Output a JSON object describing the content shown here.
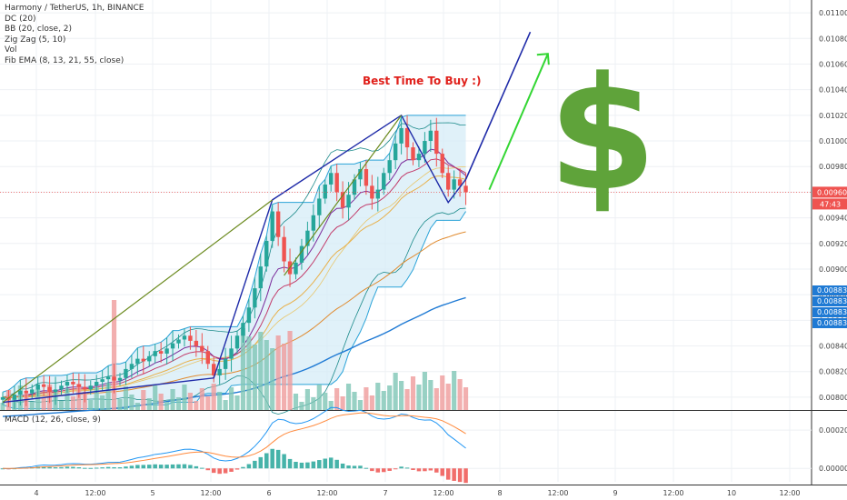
{
  "chart_data": {
    "type": "candlestick",
    "title": "Harmony / TetherUS, 1h, BINANCE",
    "indicators": [
      "DC (20)",
      "BB (20, close, 2)",
      "Zig Zag (5, 10)",
      "Vol",
      "Fib EMA (8, 13, 21, 55, close)"
    ],
    "annotation": "Best Time To Buy :)",
    "symbol": "$",
    "y_ticks": [
      "0.01100",
      "0.01080",
      "0.01060",
      "0.01040",
      "0.01020",
      "0.01000",
      "0.00980",
      "0.00960",
      "0.00940",
      "0.00920",
      "0.00900",
      "0.00880",
      "0.00860",
      "0.00840",
      "0.00820",
      "0.00800"
    ],
    "ylim": [
      0.0079,
      0.0111
    ],
    "x_ticks": [
      "4",
      "12:00",
      "5",
      "12:00",
      "6",
      "12:00",
      "7",
      "12:00",
      "8",
      "12:00",
      "9",
      "12:00",
      "10",
      "12:00"
    ],
    "last_price": "0.00960",
    "countdown": "47:43",
    "blue_labels": [
      "0.00883",
      "0.00883",
      "0.00883",
      "0.00883"
    ],
    "zigzag": [
      {
        "t": 0,
        "p": 0.00796
      },
      {
        "t": 36,
        "p": 0.00815
      },
      {
        "t": 46,
        "p": 0.00954
      },
      {
        "t": 68,
        "p": 0.0102
      },
      {
        "t": 76,
        "p": 0.00952
      },
      {
        "t": 79,
        "p": 0.0097
      }
    ],
    "forecast_line": [
      {
        "t": 79,
        "p": 0.0097
      },
      {
        "t": 90,
        "p": 0.01085
      }
    ],
    "forecast_arrow": [
      {
        "t": 83,
        "p": 0.00962
      },
      {
        "t": 93,
        "p": 0.01068
      }
    ],
    "candles_close": [
      0.008,
      0.00798,
      0.00802,
      0.00805,
      0.00803,
      0.00806,
      0.0081,
      0.00808,
      0.00804,
      0.00806,
      0.00809,
      0.00812,
      0.0081,
      0.00808,
      0.00806,
      0.00809,
      0.00812,
      0.00814,
      0.00816,
      0.00813,
      0.00815,
      0.00822,
      0.00826,
      0.0083,
      0.00828,
      0.00832,
      0.00836,
      0.00834,
      0.00838,
      0.00842,
      0.00845,
      0.00848,
      0.00844,
      0.0084,
      0.00836,
      0.00826,
      0.00817,
      0.00822,
      0.0083,
      0.00838,
      0.00848,
      0.00858,
      0.0087,
      0.00885,
      0.00902,
      0.00922,
      0.00945,
      0.00925,
      0.00906,
      0.00896,
      0.00905,
      0.00918,
      0.0093,
      0.00942,
      0.00955,
      0.00966,
      0.00975,
      0.0096,
      0.00948,
      0.00958,
      0.0097,
      0.00978,
      0.00965,
      0.00955,
      0.00962,
      0.00975,
      0.00985,
      0.00998,
      0.0101,
      0.00995,
      0.00985,
      0.0099,
      0.01,
      0.01008,
      0.0099,
      0.00975,
      0.00962,
      0.0097,
      0.00965,
      0.0096
    ],
    "macd_ylim": [
      -7e-05,
      0.0003
    ],
    "macd_ticks": [
      "0.00020",
      "0.00000"
    ]
  }
}
